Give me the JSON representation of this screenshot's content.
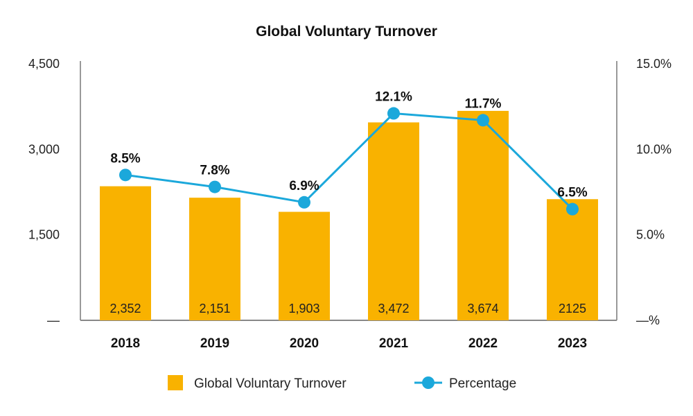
{
  "chart_data": {
    "type": "bar",
    "title": "Global Voluntary Turnover",
    "categories": [
      "2018",
      "2019",
      "2020",
      "2021",
      "2022",
      "2023"
    ],
    "series": [
      {
        "name": "Global Voluntary Turnover",
        "kind": "bar",
        "axis": "left",
        "values": [
          2352,
          2151,
          1903,
          3472,
          3674,
          2125
        ],
        "labels": [
          "2,352",
          "2,151",
          "1,903",
          "3,472",
          "3,674",
          "2125"
        ],
        "color": "#F9B200"
      },
      {
        "name": "Percentage",
        "kind": "line",
        "axis": "right",
        "values": [
          8.5,
          7.8,
          6.9,
          12.1,
          11.7,
          6.5
        ],
        "labels": [
          "8.5%",
          "7.8%",
          "6.9%",
          "12.1%",
          "11.7%",
          "6.5%"
        ],
        "color": "#1BA8DB"
      }
    ],
    "y_left": {
      "range": [
        0,
        4500
      ],
      "ticks": [
        0,
        1500,
        3000,
        4500
      ],
      "tick_labels": [
        "—",
        "1,500",
        "3,000",
        "4,500"
      ]
    },
    "y_right": {
      "range": [
        0,
        15
      ],
      "ticks": [
        0,
        5,
        10,
        15
      ],
      "tick_labels": [
        "—%",
        "5.0%",
        "10.0%",
        "15.0%"
      ]
    },
    "grid": false,
    "legend": "bottom-center"
  }
}
